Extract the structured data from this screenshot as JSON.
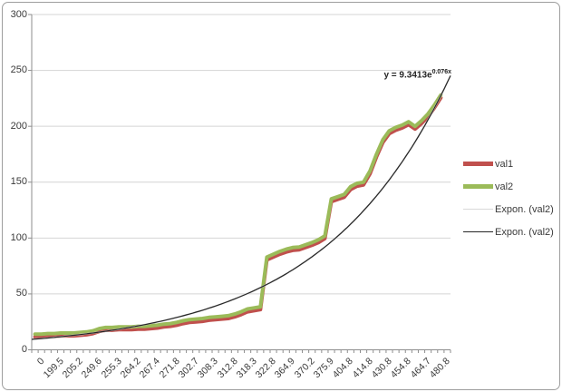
{
  "chart_data": {
    "type": "line",
    "title": "",
    "xlabel": "",
    "ylabel": "",
    "categories": [
      "0",
      "199.5",
      "205.2",
      "249.6",
      "255.3",
      "264.2",
      "267.4",
      "271.8",
      "302.7",
      "308.3",
      "312.8",
      "318.3",
      "322.8",
      "364.9",
      "370.2",
      "375.9",
      "404.8",
      "414.8",
      "430.8",
      "454.8",
      "464.7",
      "480.8"
    ],
    "points_per_label": 3,
    "series": [
      {
        "name": "val1",
        "color": "#C0504D",
        "width": 4,
        "values": [
          11.5,
          11.5,
          12,
          12,
          12.5,
          12.5,
          12.5,
          13,
          13.5,
          14.5,
          16.5,
          17.5,
          17.5,
          18,
          18,
          18,
          18.5,
          18.5,
          19,
          19.5,
          20.5,
          21,
          22,
          23.5,
          24.5,
          25,
          25.5,
          26.5,
          27,
          27.5,
          28,
          29.5,
          31.5,
          34,
          35,
          36,
          80.5,
          83,
          85.5,
          87.5,
          89,
          89.5,
          91.5,
          93.5,
          96,
          99.5,
          132.5,
          134.5,
          136.5,
          143.5,
          146.5,
          147.5,
          157.5,
          172.5,
          185.5,
          193.5,
          196.5,
          198.5,
          201.5,
          197.5,
          202.5,
          208.5,
          216.5,
          225.5
        ]
      },
      {
        "name": "val2",
        "color": "#9BBB59",
        "width": 4,
        "values": [
          14,
          14,
          14.5,
          14.5,
          15,
          15,
          15,
          15.5,
          16,
          17,
          19,
          20,
          20,
          20.5,
          20.5,
          20.5,
          21,
          21,
          21.5,
          22,
          23,
          23.5,
          24.5,
          26,
          27,
          27.5,
          28,
          29,
          29.5,
          30,
          30.5,
          32,
          34,
          36.5,
          37.5,
          38.5,
          83,
          85.5,
          88,
          90,
          91.5,
          92,
          94,
          96,
          98.5,
          102,
          135,
          137,
          139,
          146,
          149,
          150,
          160,
          175,
          188,
          196,
          199,
          201,
          204,
          200,
          205,
          211,
          219,
          228
        ]
      }
    ],
    "trendlines": [
      {
        "name": "Expon. (val2)",
        "color": "#D9D9D9",
        "width": 1.8,
        "a": 9.3413,
        "b": 0.076,
        "x_max": 43
      },
      {
        "name": "Expon. (val2)",
        "color": "#262626",
        "width": 1.2,
        "a": 9.3413,
        "b": 0.076,
        "x_max": 43
      }
    ],
    "equation": {
      "base": "y = 9.3413e",
      "exponent": "0.076x"
    },
    "y_axis": {
      "min": 0,
      "max": 300,
      "step": 50,
      "ticks": [
        "0",
        "50",
        "100",
        "150",
        "200",
        "250",
        "300"
      ]
    },
    "legend": [
      {
        "label": "val1",
        "color": "#C0504D",
        "thick": true
      },
      {
        "label": "val2",
        "color": "#9BBB59",
        "thick": true
      },
      {
        "label": "Expon. (val2)",
        "color": "#D9D9D9",
        "thick": false
      },
      {
        "label": "Expon. (val2)",
        "color": "#262626",
        "thick": false
      }
    ],
    "legend_position": "right",
    "grid": "horizontal",
    "gridline_color": "#D4D4D4",
    "axis_color": "#8E8E8E",
    "text_color": "#3A3A3A",
    "background": "#FFFFFF",
    "border_color": "#9E9E9E"
  }
}
